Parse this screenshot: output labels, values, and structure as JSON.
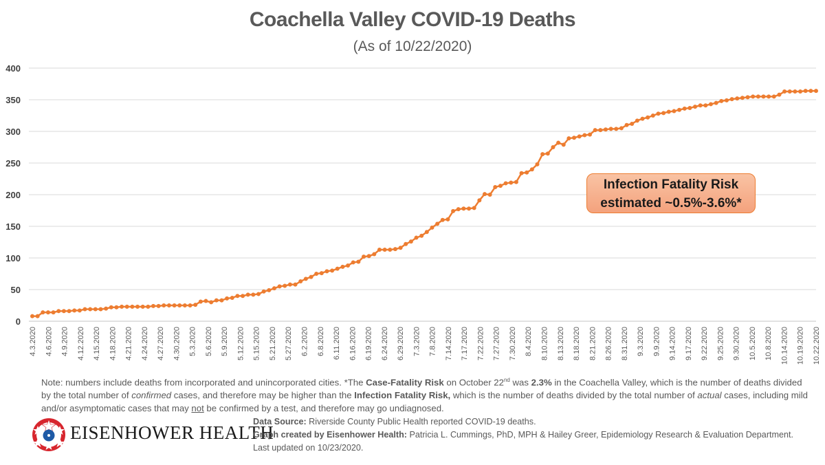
{
  "chart_data": {
    "type": "line",
    "title": "Coachella Valley COVID-19 Deaths",
    "subtitle": "(As of 10/22/2020)",
    "xlabel": "",
    "ylabel": "",
    "ylim": [
      0,
      400
    ],
    "yticks": [
      0,
      50,
      100,
      150,
      200,
      250,
      300,
      350,
      400
    ],
    "grid": true,
    "legend": "none",
    "series_color": "#ed7d31",
    "x_tick_labels": [
      "4.3.2020",
      "4.6.2020",
      "4.9.2020",
      "4.12.2020",
      "4.15.2020",
      "4.18.2020",
      "4.21.2020",
      "4.24.2020",
      "4.27.2020",
      "4.30.2020",
      "5.3.2020",
      "5.6.2020",
      "5.9.2020",
      "5.12.2020",
      "5.15.2020",
      "5.21.2020",
      "5.27.2020",
      "6.2.2020",
      "6.8.2020",
      "6.11.2020",
      "6.16.2020",
      "6.19.2020",
      "6.24.2020",
      "6.29.2020",
      "7.3.2020",
      "7.8.2020",
      "7.14.2020",
      "7.17.2020",
      "7.22.2020",
      "7.27.2020",
      "7.30.2020",
      "8.4.2020",
      "8.10.2020",
      "8.13.2020",
      "8.18.2020",
      "8.21.2020",
      "8.26.2020",
      "8.31.2020",
      "9.3.2020",
      "9.9.2020",
      "9.14.2020",
      "9.17.2020",
      "9.22.2020",
      "9.25.2020",
      "9.30.2020",
      "10.5.2020",
      "10.8.2020",
      "10.14.2020",
      "10.19.2020",
      "10.22.2020"
    ],
    "series": [
      {
        "name": "Deaths",
        "values": [
          8,
          8,
          14,
          14,
          14,
          16,
          16,
          16,
          17,
          17,
          19,
          19,
          19,
          19,
          20,
          22,
          22,
          23,
          23,
          23,
          23,
          23,
          23,
          24,
          24,
          25,
          25,
          25,
          25,
          25,
          25,
          26,
          31,
          32,
          30,
          33,
          33,
          36,
          37,
          40,
          40,
          42,
          42,
          43,
          47,
          49,
          52,
          55,
          56,
          58,
          58,
          63,
          67,
          70,
          75,
          76,
          79,
          80,
          83,
          86,
          88,
          93,
          94,
          102,
          103,
          106,
          113,
          113,
          113,
          114,
          116,
          122,
          126,
          132,
          135,
          141,
          148,
          154,
          160,
          161,
          174,
          177,
          178,
          178,
          179,
          191,
          201,
          200,
          212,
          214,
          218,
          219,
          220,
          234,
          235,
          240,
          248,
          264,
          265,
          275,
          282,
          279,
          289,
          290,
          292,
          294,
          295,
          302,
          302,
          303,
          304,
          304,
          305,
          310,
          312,
          317,
          320,
          322,
          325,
          328,
          329,
          331,
          332,
          334,
          336,
          337,
          339,
          341,
          341,
          343,
          345,
          348,
          349,
          351,
          352,
          353,
          354,
          355,
          355,
          355,
          355,
          355,
          358,
          363,
          363,
          363,
          363,
          364,
          364,
          364
        ]
      }
    ],
    "annotation": {
      "line1": "Infection Fatality Risk",
      "line2": "estimated ~0.5%-3.6%*"
    }
  },
  "footer": {
    "note_parts": {
      "p1": "Note: numbers include deaths from incorporated and unincorporated cities. *The ",
      "b1": "Case-Fatality Risk",
      "p2": " on October 22",
      "sup": "nd",
      "p3": "  was ",
      "b2": "2.3%",
      "p4": " in the Coachella Valley, which is the number of deaths divided by the total number of ",
      "i1": "confirmed",
      "p5": " cases, and therefore may be higher than the ",
      "b3": "Infection Fatality Risk,",
      "p6": " which is the number of deaths divided by the total number of ",
      "i2": "actual",
      "p7": " cases, including mild and/or asymptomatic cases that may ",
      "u1": "not",
      "p8": " be confirmed by a test, and therefore may go undiagnosed."
    },
    "source_label": "Data Source:",
    "source_text": " Riverside County Public Health reported COVID-19 deaths.",
    "credit_label": "Graph created by Eisenhower Health:",
    "credit_text": " Patricia L. Cummings, PhD, MPH & Hailey Greer, Epidemiology Research & Evaluation Department. Last updated on 10/23/2020.",
    "logo_text": "EISENHOWER HEALTH",
    "logo_icon": "star-circle-logo-icon"
  }
}
